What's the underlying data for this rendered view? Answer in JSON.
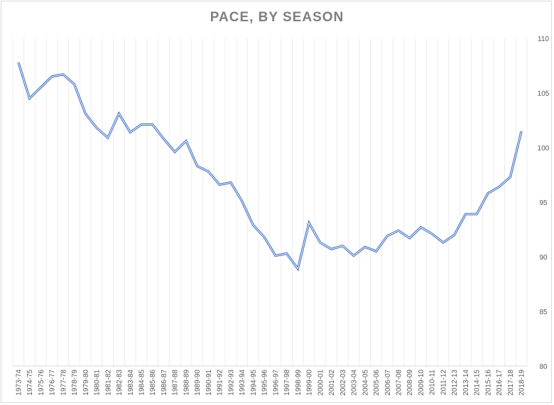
{
  "chart_data": {
    "type": "line",
    "title": "PACE, BY SEASON",
    "xlabel": "",
    "ylabel": "",
    "ylim": [
      80,
      110
    ],
    "yticks": [
      80,
      85,
      90,
      95,
      100,
      105,
      110
    ],
    "y_axis_side": "right",
    "grid": "vertical gridlines",
    "legend": "none",
    "line_color": "#4472c4",
    "categories": [
      "1973-74",
      "1974-75",
      "1975-76",
      "1976-77",
      "1977-78",
      "1978-79",
      "1979-80",
      "1980-81",
      "1981-82",
      "1982-83",
      "1983-84",
      "1984-85",
      "1985-86",
      "1986-87",
      "1987-88",
      "1988-89",
      "1989-90",
      "1990-91",
      "1991-92",
      "1992-93",
      "1993-94",
      "1994-95",
      "1995-96",
      "1996-97",
      "1997-98",
      "1998-99",
      "1999-00",
      "2000-01",
      "2001-02",
      "2002-03",
      "2003-04",
      "2004-05",
      "2005-06",
      "2006-07",
      "2007-08",
      "2008-09",
      "2009-10",
      "2010-11",
      "2011-12",
      "2012-13",
      "2013-14",
      "2014-15",
      "2015-16",
      "2016-17",
      "2017-18",
      "2018-19"
    ],
    "series": [
      {
        "values": [
          107.8,
          104.5,
          105.5,
          106.5,
          106.7,
          105.8,
          103.1,
          101.8,
          100.9,
          103.1,
          101.4,
          102.1,
          102.1,
          100.8,
          99.6,
          100.6,
          98.3,
          97.8,
          96.6,
          96.8,
          95.1,
          92.9,
          91.8,
          90.1,
          90.3,
          88.9,
          93.1,
          91.3,
          90.7,
          91.0,
          90.1,
          90.9,
          90.5,
          91.9,
          92.4,
          91.7,
          92.7,
          92.1,
          91.3,
          92.0,
          93.9,
          93.9,
          95.8,
          96.4,
          97.3,
          101.5
        ]
      }
    ]
  }
}
